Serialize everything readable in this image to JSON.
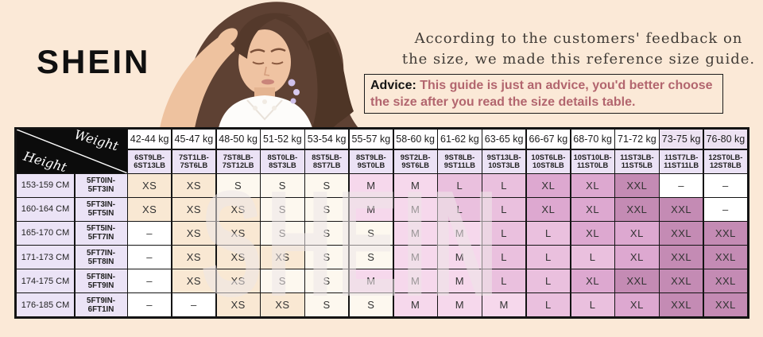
{
  "logo": "SHEIN",
  "watermark": "SHEIN",
  "tagline": {
    "line1": "According to the customers' feedback on",
    "line2": "the size, we made this reference size guide."
  },
  "advice": {
    "label": "Advice:",
    "text": " This guide is just an advice, you'd better choose the size after you read the size details table."
  },
  "table": {
    "corner": {
      "weight_label": "Weight",
      "height_label": "Height"
    },
    "weight_kg": [
      "42-44 kg",
      "45-47 kg",
      "48-50 kg",
      "51-52 kg",
      "53-54 kg",
      "55-57 kg",
      "58-60 kg",
      "61-62 kg",
      "63-65 kg",
      "66-67 kg",
      "68-70 kg",
      "71-72 kg",
      "73-75 kg",
      "76-80 kg"
    ],
    "kg_tint_start": 12,
    "weight_lb": [
      [
        "6ST9LB-",
        "6ST13LB"
      ],
      [
        "7ST1LB-",
        "7ST6LB"
      ],
      [
        "7ST8LB-",
        "7ST12LB"
      ],
      [
        "8ST0LB-",
        "8ST3LB"
      ],
      [
        "8ST5LB-",
        "8ST7LB"
      ],
      [
        "8ST9LB-",
        "9ST0LB"
      ],
      [
        "9ST2LB-",
        "9ST6LB"
      ],
      [
        "9ST8LB-",
        "9ST11LB"
      ],
      [
        "9ST13LB-",
        "10ST3LB"
      ],
      [
        "10ST6LB-",
        "10ST8LB"
      ],
      [
        "10ST10LB-",
        "11ST0LB"
      ],
      [
        "11ST3LB-",
        "11ST5LB"
      ],
      [
        "11ST7LB-",
        "11ST11LB"
      ],
      [
        "12ST0LB-",
        "12ST8LB"
      ]
    ],
    "rows": [
      {
        "cm": "153-159 CM",
        "ftin": [
          "5FT0IN-",
          "5FT3IN"
        ],
        "sizes": [
          "XS",
          "XS",
          "S",
          "S",
          "S",
          "M",
          "M",
          "L",
          "L",
          "XL",
          "XL",
          "XXL",
          "–",
          "–"
        ]
      },
      {
        "cm": "160-164 CM",
        "ftin": [
          "5FT3IN-",
          "5FT5IN"
        ],
        "sizes": [
          "XS",
          "XS",
          "XS",
          "S",
          "S",
          "M",
          "M",
          "L",
          "L",
          "XL",
          "XL",
          "XXL",
          "XXL",
          "–"
        ]
      },
      {
        "cm": "165-170 CM",
        "ftin": [
          "5FT5IN-",
          "5FT7IN"
        ],
        "sizes": [
          "–",
          "XS",
          "XS",
          "S",
          "S",
          "S",
          "M",
          "M",
          "L",
          "L",
          "XL",
          "XL",
          "XXL",
          "XXL"
        ]
      },
      {
        "cm": "171-173 CM",
        "ftin": [
          "5FT7IN-",
          "5FT8IN"
        ],
        "sizes": [
          "–",
          "XS",
          "XS",
          "XS",
          "S",
          "S",
          "M",
          "M",
          "L",
          "L",
          "L",
          "XL",
          "XXL",
          "XXL"
        ]
      },
      {
        "cm": "174-175 CM",
        "ftin": [
          "5FT8IN-",
          "5FT9IN"
        ],
        "sizes": [
          "–",
          "XS",
          "XS",
          "S",
          "S",
          "M",
          "M",
          "M",
          "L",
          "L",
          "XL",
          "XXL",
          "XXL",
          "XXL"
        ]
      },
      {
        "cm": "176-185 CM",
        "ftin": [
          "5FT9IN-",
          "6FT1IN"
        ],
        "sizes": [
          "–",
          "–",
          "XS",
          "XS",
          "S",
          "S",
          "M",
          "M",
          "M",
          "L",
          "L",
          "XL",
          "XXL",
          "XXL"
        ]
      }
    ]
  },
  "colors": {
    "page_bg": "#fbe9d7",
    "advice_text": "#b2656e",
    "kg_default": "#fffeff",
    "kg_tinted": "#ede2f2",
    "lb_bg": "#ebe2f5",
    "height_bg": "#ebe3f6",
    "size_XS": "#f9e8d3",
    "size_S": "#fdf8ef",
    "size_M": "#f6d8ec",
    "size_L": "#eac0de",
    "size_XL": "#dda8d0",
    "size_XXL": "#c48bb4",
    "size_dash": "#ffffff"
  }
}
